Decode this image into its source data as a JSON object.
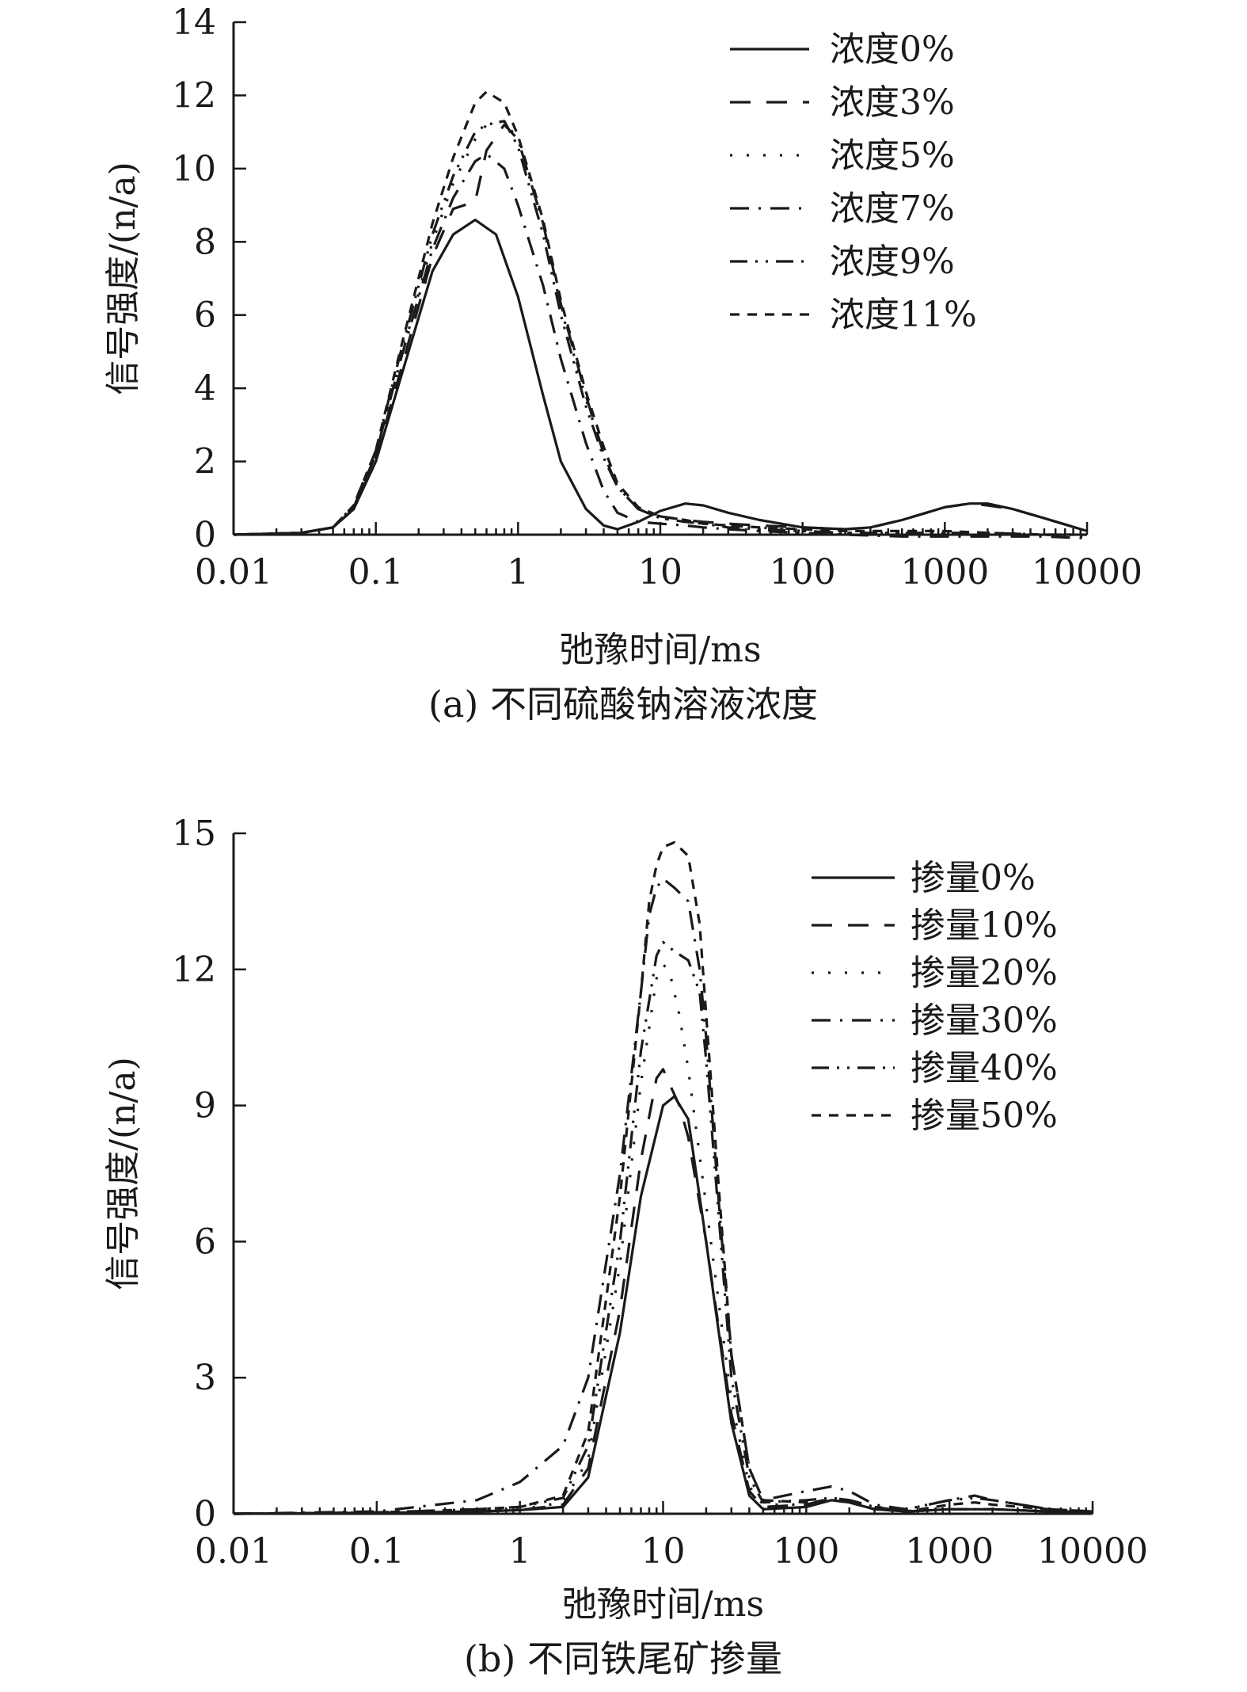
{
  "chart_data": [
    {
      "type": "line",
      "caption": "(a) 不同硫酸钠溶液浓度",
      "xlabel": "弛豫时间/ms",
      "ylabel": "信号强度/(n/a)",
      "xscale": "log",
      "xlim": [
        0.01,
        10000
      ],
      "ylim": [
        0,
        14
      ],
      "xticks": [
        0.01,
        0.1,
        1,
        10,
        100,
        1000,
        10000
      ],
      "xtick_labels": [
        "0.01",
        "0.1",
        "1",
        "10",
        "100",
        "1000",
        "10000"
      ],
      "yticks": [
        0,
        2,
        4,
        6,
        8,
        10,
        12,
        14
      ],
      "ytick_labels": [
        "0",
        "2",
        "4",
        "6",
        "8",
        "10",
        "12",
        "14"
      ],
      "legend_position": "top-right",
      "series": [
        {
          "name": "浓度0%",
          "dash": "solid",
          "x": [
            0.01,
            0.03,
            0.05,
            0.07,
            0.1,
            0.15,
            0.25,
            0.35,
            0.5,
            0.7,
            1,
            1.5,
            2,
            3,
            4,
            5,
            7,
            10,
            15,
            20,
            30,
            50,
            100,
            200,
            300,
            500,
            1000,
            1500,
            2000,
            3000,
            5000,
            10000
          ],
          "y": [
            0,
            0.05,
            0.2,
            0.7,
            2.0,
            4.3,
            7.2,
            8.2,
            8.6,
            8.2,
            6.5,
            3.8,
            2.0,
            0.7,
            0.25,
            0.15,
            0.35,
            0.65,
            0.85,
            0.8,
            0.6,
            0.4,
            0.2,
            0.15,
            0.2,
            0.4,
            0.75,
            0.85,
            0.85,
            0.7,
            0.45,
            0.1
          ]
        },
        {
          "name": "浓度3%",
          "dash": "dash",
          "x": [
            0.01,
            0.03,
            0.05,
            0.07,
            0.1,
            0.15,
            0.25,
            0.35,
            0.5,
            0.6,
            0.8,
            1,
            1.5,
            2,
            3,
            4,
            5,
            7,
            10,
            15,
            20,
            30,
            50,
            100,
            200,
            300,
            500,
            1000,
            1500,
            2000,
            3000,
            5000,
            10000
          ],
          "y": [
            0,
            0.05,
            0.2,
            0.7,
            2.1,
            4.5,
            7.6,
            8.9,
            9.1,
            10.5,
            11.2,
            10.8,
            8.5,
            6.3,
            3.8,
            2.2,
            1.3,
            0.7,
            0.5,
            0.4,
            0.35,
            0.3,
            0.25,
            0.2,
            0.15,
            0.2,
            0.4,
            0.75,
            0.85,
            0.8,
            0.7,
            0.45,
            0.1
          ]
        },
        {
          "name": "浓度5%",
          "dash": "dot",
          "x": [
            0.01,
            0.03,
            0.05,
            0.07,
            0.1,
            0.15,
            0.25,
            0.35,
            0.5,
            0.6,
            0.8,
            1,
            1.5,
            2,
            3,
            4,
            5,
            7,
            10,
            15,
            20,
            30,
            50,
            100,
            200,
            500,
            1000,
            2000,
            5000,
            10000
          ],
          "y": [
            0,
            0.05,
            0.2,
            0.75,
            2.2,
            4.8,
            8.0,
            9.6,
            10.8,
            11.2,
            11.3,
            10.8,
            8.5,
            6.2,
            3.7,
            2.2,
            1.3,
            0.7,
            0.45,
            0.35,
            0.3,
            0.25,
            0.2,
            0.1,
            0.05,
            0.05,
            0.05,
            0.05,
            0.0,
            -0.05
          ]
        },
        {
          "name": "浓度7%",
          "dash": "dashdot",
          "x": [
            0.01,
            0.03,
            0.05,
            0.07,
            0.1,
            0.15,
            0.25,
            0.35,
            0.5,
            0.6,
            0.8,
            1,
            1.5,
            2,
            3,
            4,
            5,
            7,
            10,
            15,
            20,
            30,
            50,
            100,
            200,
            500,
            1000,
            2000,
            5000,
            10000
          ],
          "y": [
            0,
            0.05,
            0.2,
            0.75,
            2.2,
            4.8,
            7.8,
            9.2,
            10.2,
            10.4,
            10.0,
            9.0,
            6.8,
            4.8,
            2.5,
            1.2,
            0.6,
            0.35,
            0.3,
            0.25,
            0.2,
            0.15,
            0.1,
            0.05,
            0.0,
            -0.05,
            -0.05,
            -0.05,
            -0.05,
            -0.1
          ]
        },
        {
          "name": "浓度9%",
          "dash": "dashdotdot",
          "x": [
            0.01,
            0.03,
            0.05,
            0.07,
            0.1,
            0.15,
            0.25,
            0.35,
            0.5,
            0.6,
            0.8,
            1,
            1.5,
            2,
            3,
            4,
            5,
            7,
            10,
            15,
            20,
            30,
            50,
            100,
            200,
            500,
            1000,
            2000,
            5000,
            10000
          ],
          "y": [
            0,
            0.05,
            0.2,
            0.8,
            2.3,
            5.0,
            8.2,
            9.8,
            11.0,
            11.2,
            11.3,
            10.6,
            8.2,
            6.0,
            3.5,
            2.1,
            1.3,
            0.7,
            0.45,
            0.35,
            0.3,
            0.2,
            0.15,
            0.1,
            0.05,
            0.05,
            0.05,
            0.05,
            0.0,
            0.0
          ]
        },
        {
          "name": "浓度11%",
          "dash": "shortdash",
          "x": [
            0.01,
            0.03,
            0.05,
            0.07,
            0.1,
            0.15,
            0.25,
            0.35,
            0.5,
            0.6,
            0.8,
            1,
            1.5,
            2,
            3,
            4,
            5,
            7,
            10,
            15,
            20,
            30,
            50,
            100,
            200,
            500,
            1000,
            2000,
            5000,
            10000
          ],
          "y": [
            0,
            0.05,
            0.2,
            0.8,
            2.3,
            5.1,
            8.5,
            10.3,
            11.8,
            12.1,
            11.8,
            10.9,
            8.6,
            6.4,
            3.9,
            2.4,
            1.4,
            0.75,
            0.5,
            0.4,
            0.3,
            0.25,
            0.2,
            0.15,
            0.1,
            0.1,
            0.1,
            0.05,
            0.0,
            0.0
          ]
        }
      ]
    },
    {
      "type": "line",
      "caption": "(b) 不同铁尾矿掺量",
      "xlabel": "弛豫时间/ms",
      "ylabel": "信号强度/(n/a)",
      "xscale": "log",
      "xlim": [
        0.01,
        10000
      ],
      "ylim": [
        0,
        15
      ],
      "xticks": [
        0.01,
        0.1,
        1,
        10,
        100,
        1000,
        10000
      ],
      "xtick_labels": [
        "0.01",
        "0.1",
        "1",
        "10",
        "100",
        "1000",
        "10000"
      ],
      "yticks": [
        0,
        3,
        6,
        9,
        12,
        15
      ],
      "ytick_labels": [
        "0",
        "3",
        "6",
        "9",
        "12",
        "15"
      ],
      "legend_position": "top-right",
      "series": [
        {
          "name": "掺量0%",
          "dash": "solid",
          "x": [
            0.01,
            0.1,
            0.5,
            1,
            2,
            3,
            5,
            7,
            10,
            12,
            15,
            20,
            30,
            40,
            50,
            100,
            150,
            200,
            300,
            500,
            1000,
            2000,
            5000,
            10000
          ],
          "y": [
            0,
            0.02,
            0.05,
            0.08,
            0.15,
            0.8,
            4.0,
            7.0,
            9.0,
            9.2,
            8.7,
            6.0,
            2.0,
            0.4,
            0.1,
            0.15,
            0.3,
            0.25,
            0.1,
            0.05,
            0.1,
            0.1,
            0.05,
            0.05
          ]
        },
        {
          "name": "掺量10%",
          "dash": "dash",
          "x": [
            0.01,
            0.1,
            0.5,
            1,
            2,
            3,
            5,
            7,
            9,
            10,
            11,
            13,
            15,
            20,
            30,
            40,
            50,
            100,
            150,
            200,
            300,
            500,
            1000,
            2000,
            5000,
            10000
          ],
          "y": [
            0,
            0.02,
            0.05,
            0.08,
            0.2,
            1.0,
            4.5,
            7.8,
            9.6,
            9.8,
            9.5,
            9.0,
            8.3,
            6.0,
            2.2,
            0.5,
            0.15,
            0.2,
            0.35,
            0.3,
            0.15,
            0.05,
            0.1,
            0.1,
            0.05,
            0.05
          ]
        },
        {
          "name": "掺量20%",
          "dash": "dot",
          "x": [
            0.01,
            0.1,
            0.5,
            1,
            2,
            3,
            5,
            7,
            9,
            10,
            11,
            13,
            15,
            20,
            30,
            40,
            50,
            100,
            150,
            200,
            300,
            500,
            1000,
            2000,
            5000,
            10000
          ],
          "y": [
            0,
            0.02,
            0.05,
            0.1,
            0.25,
            1.2,
            5.5,
            9.5,
            11.8,
            12.1,
            12.0,
            11.0,
            9.8,
            6.8,
            2.5,
            0.6,
            0.2,
            0.2,
            0.3,
            0.25,
            0.1,
            0.05,
            0.1,
            0.1,
            0.05,
            0.05
          ]
        },
        {
          "name": "掺量30%",
          "dash": "dashdot",
          "x": [
            0.01,
            0.1,
            0.5,
            1,
            2,
            3,
            5,
            7,
            8,
            9,
            10,
            12,
            15,
            18,
            20,
            25,
            30,
            40,
            50,
            100,
            150,
            200,
            300,
            500,
            1000,
            1500,
            2000,
            5000,
            10000
          ],
          "y": [
            0,
            0.05,
            0.3,
            0.7,
            1.5,
            3.0,
            7.5,
            11.5,
            13.2,
            13.8,
            14.0,
            13.8,
            13.5,
            12.0,
            10.5,
            6.5,
            3.5,
            1.0,
            0.3,
            0.5,
            0.6,
            0.5,
            0.2,
            0.1,
            0.3,
            0.4,
            0.3,
            0.1,
            0.05
          ]
        },
        {
          "name": "掺量40%",
          "dash": "dashdotdot",
          "x": [
            0.01,
            0.1,
            0.5,
            1,
            2,
            3,
            5,
            7,
            9,
            10,
            12,
            15,
            18,
            20,
            25,
            30,
            40,
            50,
            100,
            150,
            200,
            300,
            500,
            1000,
            1500,
            2000,
            5000,
            10000
          ],
          "y": [
            0,
            0.03,
            0.1,
            0.15,
            0.35,
            1.5,
            6.0,
            10.2,
            12.3,
            12.6,
            12.4,
            12.2,
            11.5,
            10.0,
            6.2,
            3.0,
            0.8,
            0.25,
            0.3,
            0.35,
            0.3,
            0.15,
            0.1,
            0.3,
            0.35,
            0.3,
            0.1,
            0.05
          ]
        },
        {
          "name": "掺量50%",
          "dash": "shortdash",
          "x": [
            0.01,
            0.1,
            0.5,
            1,
            2,
            3,
            5,
            7,
            8,
            9,
            10,
            12,
            15,
            18,
            20,
            25,
            30,
            40,
            50,
            100,
            150,
            200,
            300,
            500,
            1000,
            1500,
            2000,
            5000,
            10000
          ],
          "y": [
            0,
            0.03,
            0.1,
            0.15,
            0.4,
            1.8,
            7.0,
            11.5,
            13.5,
            14.3,
            14.7,
            14.8,
            14.5,
            13.0,
            11.0,
            6.8,
            3.5,
            1.0,
            0.3,
            0.25,
            0.3,
            0.25,
            0.1,
            0.05,
            0.2,
            0.25,
            0.2,
            0.1,
            0.05
          ]
        }
      ]
    }
  ]
}
